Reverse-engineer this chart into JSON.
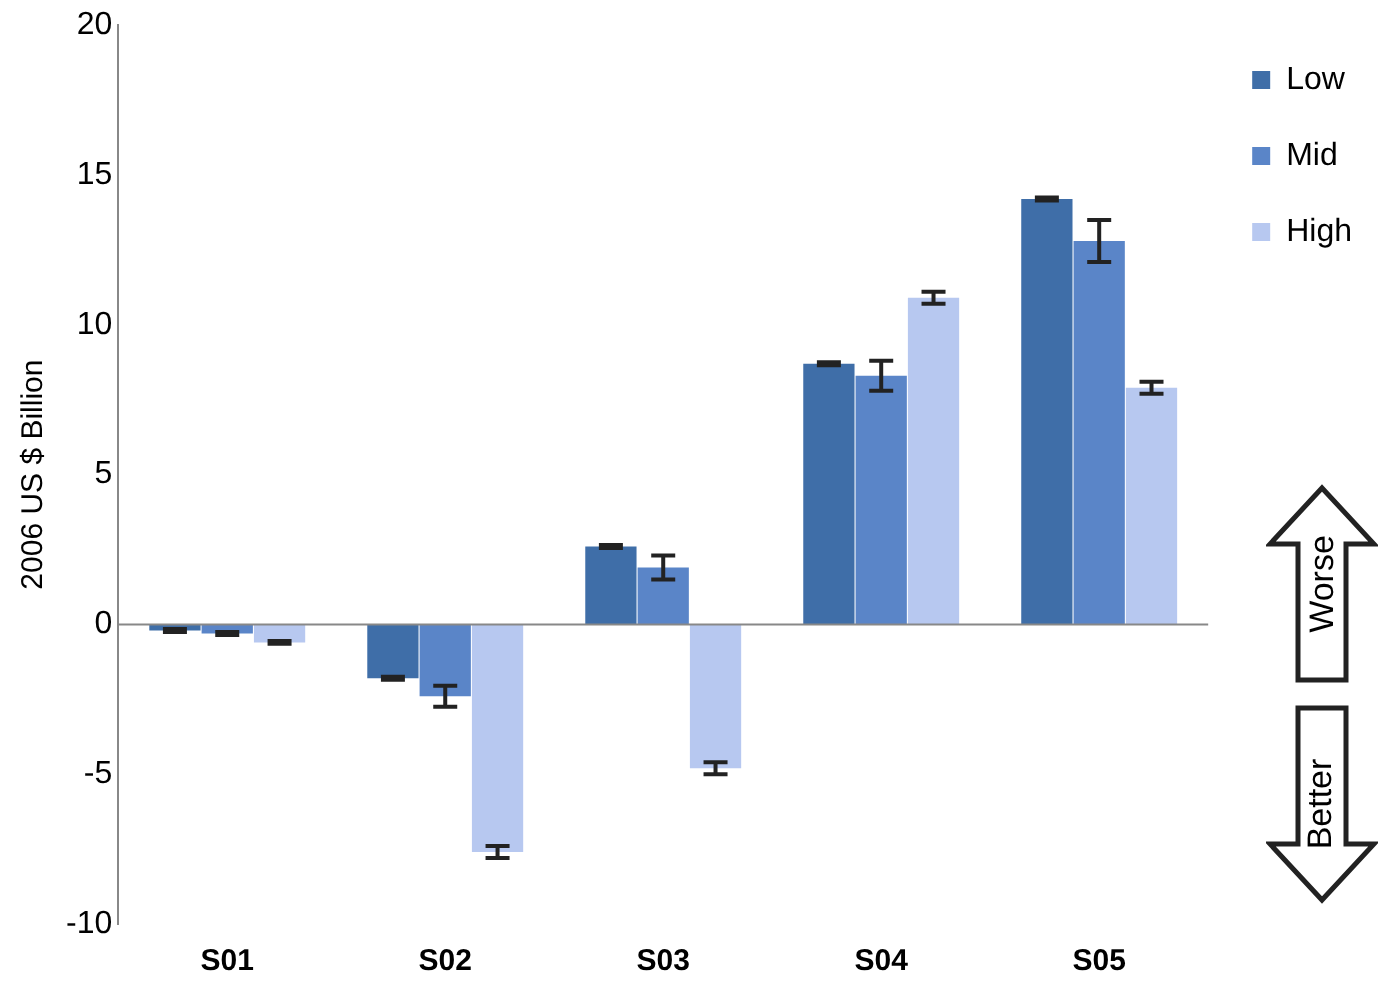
{
  "chart_data": {
    "type": "bar",
    "ylabel": "2006 US $ Billion",
    "categories": [
      "S01",
      "S02",
      "S03",
      "S04",
      "S05"
    ],
    "series": [
      {
        "name": "Low",
        "color": "#3f6ea8",
        "values": [
          -0.2,
          -1.8,
          2.6,
          8.7,
          14.2
        ],
        "errors": [
          0.05,
          0.05,
          0.05,
          0.05,
          0.05
        ]
      },
      {
        "name": "Mid",
        "color": "#5a85c8",
        "values": [
          -0.3,
          -2.4,
          1.9,
          8.3,
          12.8
        ],
        "errors": [
          0.05,
          0.35,
          0.4,
          0.5,
          0.7
        ]
      },
      {
        "name": "High",
        "color": "#b7c8f0",
        "values": [
          -0.6,
          -7.6,
          -4.8,
          10.9,
          7.9
        ],
        "errors": [
          0.05,
          0.2,
          0.2,
          0.2,
          0.2
        ]
      }
    ],
    "ref_lines": [
      {
        "axis": "y",
        "value": 0,
        "color": "#888888"
      }
    ],
    "ylim": [
      -10,
      20
    ],
    "yticks": [
      -10,
      -5,
      0,
      5,
      10,
      15,
      20
    ],
    "grid": false,
    "legend": "right",
    "annotations": [
      "Worse",
      "Better"
    ]
  }
}
